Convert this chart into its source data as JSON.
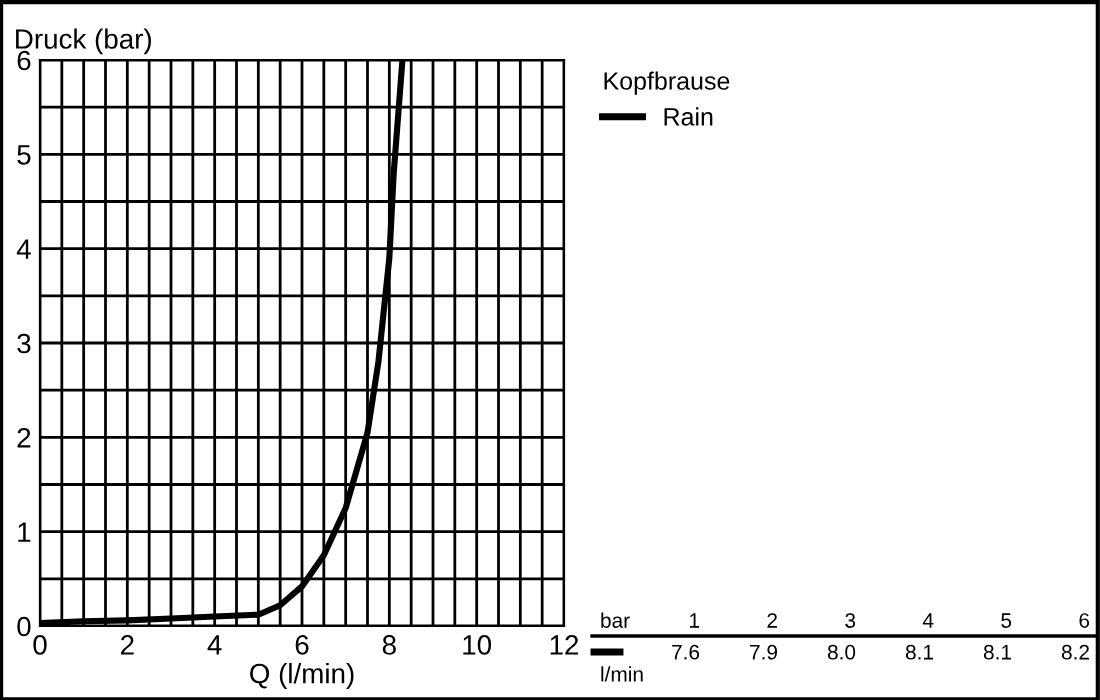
{
  "chart_data": {
    "type": "line",
    "xlabel": "Q (l/min)",
    "ylabel": "Druck (bar)",
    "legend_title": "Kopfbrause",
    "legend": "right",
    "x": [
      0,
      1,
      2,
      3,
      4,
      5,
      5.5,
      6,
      6.5,
      7,
      7.5,
      7.75,
      8,
      8.1,
      8.3
    ],
    "series": [
      {
        "name": "Rain",
        "color": "#000000",
        "values": [
          0.03,
          0.05,
          0.06,
          0.08,
          0.1,
          0.12,
          0.22,
          0.42,
          0.75,
          1.25,
          2.05,
          2.8,
          3.9,
          4.8,
          6
        ]
      }
    ],
    "xlim": [
      0,
      12
    ],
    "ylim": [
      0,
      6
    ],
    "xticks": [
      0,
      {
        "value": 0.5,
        "label": null
      },
      {
        "value": 1,
        "label": null
      },
      {
        "value": 1.5,
        "label": null
      },
      2,
      {
        "value": 2.5,
        "label": null
      },
      {
        "value": 3,
        "label": null
      },
      {
        "value": 3.5,
        "label": null
      },
      4,
      {
        "value": 4.5,
        "label": null
      },
      {
        "value": 5,
        "label": null
      },
      {
        "value": 5.5,
        "label": null
      },
      6,
      {
        "value": 6.5,
        "label": null
      },
      {
        "value": 7,
        "label": null
      },
      {
        "value": 7.5,
        "label": null
      },
      8,
      {
        "value": 8.5,
        "label": null
      },
      {
        "value": 9,
        "label": null
      },
      {
        "value": 9.5,
        "label": null
      },
      10,
      {
        "value": 10.5,
        "label": null
      },
      {
        "value": 11,
        "label": null
      },
      {
        "value": 11.5,
        "label": null
      },
      12
    ],
    "yticks": [
      0,
      {
        "value": 0.5,
        "label": null
      },
      1,
      {
        "value": 1.5,
        "label": null
      },
      2,
      {
        "value": 2.5,
        "label": null
      },
      3,
      {
        "value": 3.5,
        "label": null
      },
      4,
      {
        "value": 4.5,
        "label": null
      },
      5,
      {
        "value": 5.5,
        "label": null
      },
      6
    ],
    "grid": true,
    "annotations": [
      "bar",
      "1",
      "2",
      "3",
      "4",
      "5",
      "6",
      "l/min",
      "7.6",
      "7.9",
      "8.0",
      "8.1",
      "8.1",
      "8.2"
    ]
  }
}
